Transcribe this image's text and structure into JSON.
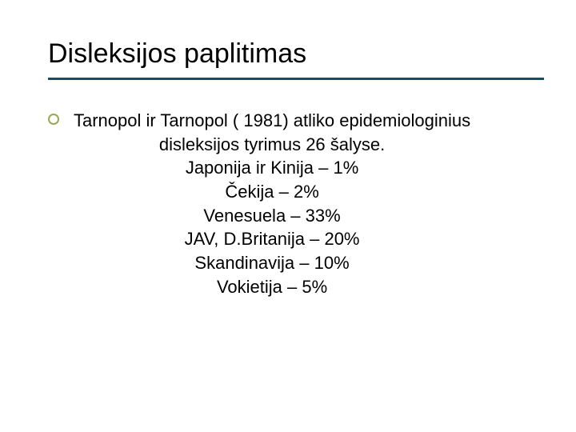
{
  "slide": {
    "title": "Disleksijos paplitimas",
    "rule_color": "#134d66",
    "bullet_border_color": "#9aa84f",
    "title_fontsize": 34,
    "body_fontsize": 22,
    "background_color": "#ffffff",
    "text_color": "#000000",
    "lines": [
      "Tarnopol ir Tarnopol ( 1981) atliko epidemiologinius",
      "disleksijos tyrimus 26 šalyse.",
      "Japonija ir Kinija – 1%",
      "Čekija – 2%",
      "Venesuela – 33%",
      "JAV, D.Britanija – 20%",
      "Skandinavija – 10%",
      "Vokietija – 5%"
    ]
  }
}
